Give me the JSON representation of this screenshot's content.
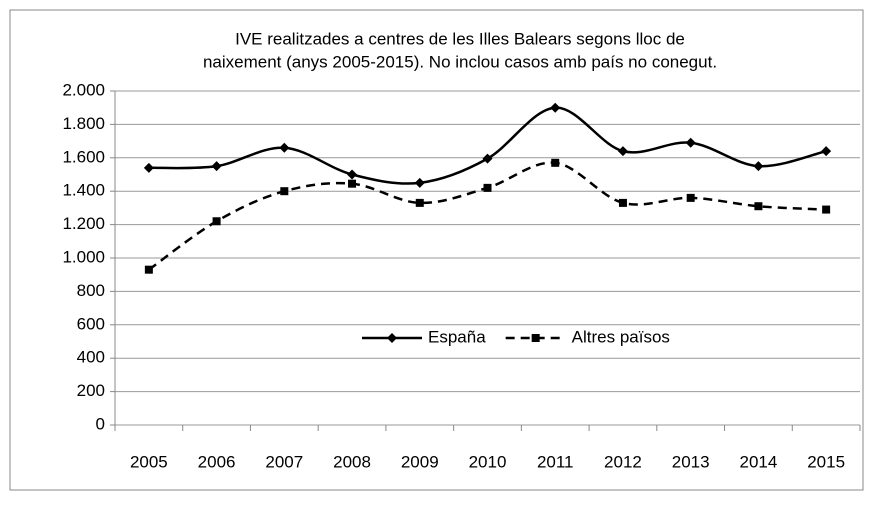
{
  "chart_data": {
    "type": "line",
    "title": [
      "IVE realitzades a centres de les Illes Balears segons lloc de",
      "naixement (anys 2005-2015). No inclou casos amb país no conegut."
    ],
    "categories": [
      "2005",
      "2006",
      "2007",
      "2008",
      "2009",
      "2010",
      "2011",
      "2012",
      "2013",
      "2014",
      "2015"
    ],
    "series": [
      {
        "name": "España",
        "color": "#000000",
        "dash": false,
        "marker": "diamond",
        "values": [
          1540,
          1550,
          1660,
          1500,
          1450,
          1595,
          1900,
          1640,
          1690,
          1550,
          1640
        ]
      },
      {
        "name": "Altres països",
        "color": "#000000",
        "dash": true,
        "marker": "square",
        "values": [
          930,
          1220,
          1400,
          1445,
          1330,
          1420,
          1570,
          1330,
          1360,
          1310,
          1290
        ]
      }
    ],
    "ylim": [
      0,
      2000
    ],
    "yticks": [
      0,
      200,
      400,
      600,
      800,
      {
        "value": 1000,
        "label": "1.000"
      },
      {
        "value": 1200,
        "label": "1.200"
      },
      {
        "value": 1400,
        "label": "1.400"
      },
      {
        "value": 1600,
        "label": "1.600"
      },
      {
        "value": 1800,
        "label": "1.800"
      },
      {
        "value": 2000,
        "label": "2.000"
      }
    ],
    "grid": true,
    "smooth": true,
    "legend": "center"
  }
}
